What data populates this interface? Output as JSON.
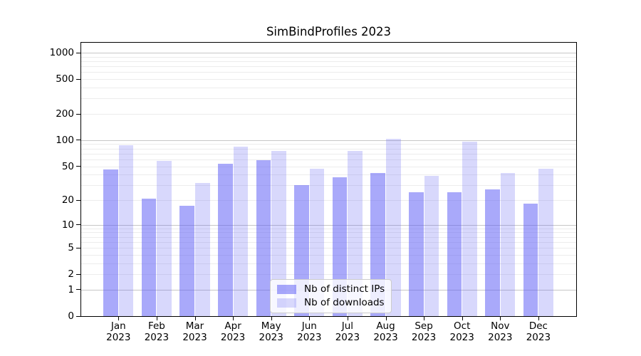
{
  "chart_data": {
    "type": "bar",
    "title": "SimBindProfiles 2023",
    "x_ticks": [
      {
        "month": "Jan",
        "year": "2023"
      },
      {
        "month": "Feb",
        "year": "2023"
      },
      {
        "month": "Mar",
        "year": "2023"
      },
      {
        "month": "Apr",
        "year": "2023"
      },
      {
        "month": "May",
        "year": "2023"
      },
      {
        "month": "Jun",
        "year": "2023"
      },
      {
        "month": "Jul",
        "year": "2023"
      },
      {
        "month": "Aug",
        "year": "2023"
      },
      {
        "month": "Sep",
        "year": "2023"
      },
      {
        "month": "Oct",
        "year": "2023"
      },
      {
        "month": "Nov",
        "year": "2023"
      },
      {
        "month": "Dec",
        "year": "2023"
      }
    ],
    "series": [
      {
        "name": "Nb of distinct IPs",
        "color": "rgba(99,99,245,0.55)",
        "values": [
          46,
          21,
          17,
          53,
          59,
          30,
          37,
          42,
          25,
          25,
          27,
          18
        ]
      },
      {
        "name": "Nb of downloads",
        "color": "rgba(99,99,245,0.25)",
        "values": [
          88,
          58,
          32,
          85,
          75,
          47,
          75,
          104,
          39,
          96,
          42,
          47
        ]
      }
    ],
    "y_axis": {
      "scale": "log1p",
      "tick_values": [
        0,
        1,
        2,
        5,
        10,
        20,
        50,
        100,
        200,
        500,
        1000
      ],
      "ylim": [
        0,
        1300
      ]
    },
    "grid": {
      "major_lines": [
        1,
        10,
        100,
        1000
      ],
      "major_color": "#c6c6c6",
      "minor_color": "#ececec",
      "vertical_lines": false
    },
    "legend": {
      "position": "lower center"
    }
  }
}
